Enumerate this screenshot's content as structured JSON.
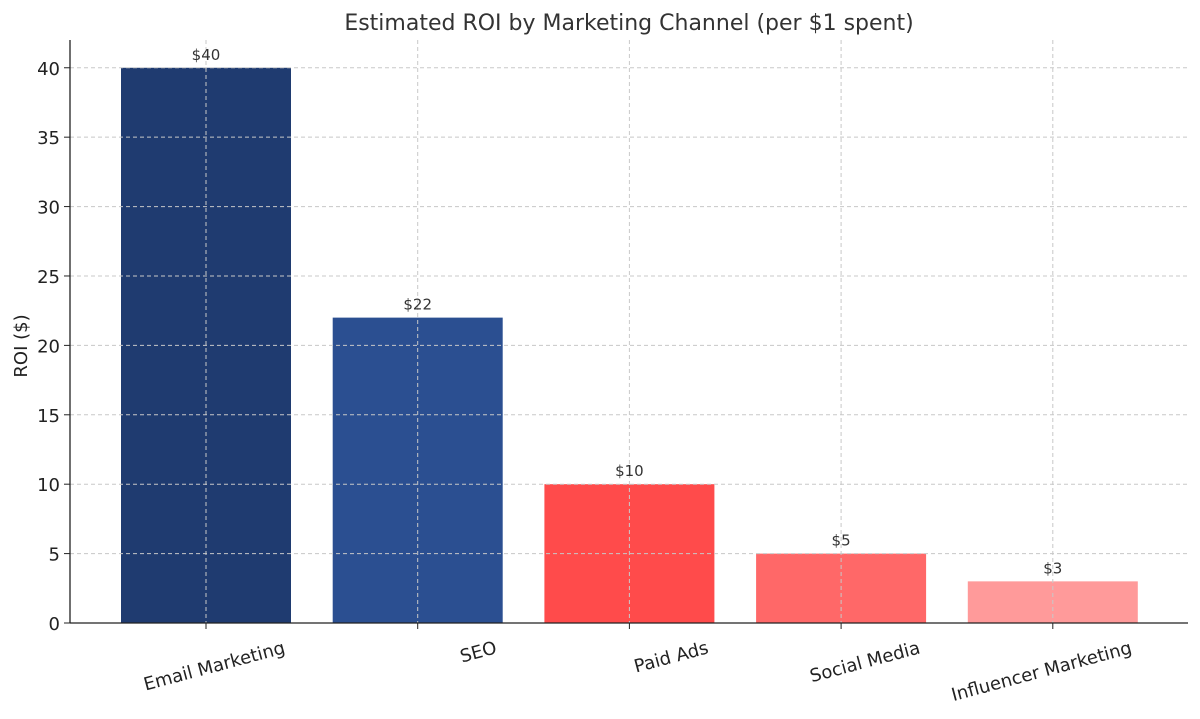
{
  "chart_data": {
    "type": "bar",
    "title": "Estimated ROI by Marketing Channel (per $1 spent)",
    "xlabel": "",
    "ylabel": "ROI ($)",
    "categories": [
      "Email Marketing",
      "SEO",
      "Paid Ads",
      "Social Media",
      "Influencer Marketing"
    ],
    "values": [
      40,
      22,
      10,
      5,
      3
    ],
    "data_labels": [
      "$40",
      "$22",
      "$10",
      "$5",
      "$3"
    ],
    "colors": [
      "#1f3b70",
      "#2b4f91",
      "#ff4b4b",
      "#ff6868",
      "#ff9a9a"
    ],
    "ylim": [
      0,
      42
    ],
    "yticks": [
      0,
      5,
      10,
      15,
      20,
      25,
      30,
      35,
      40
    ],
    "grid": true,
    "legend": "none"
  }
}
